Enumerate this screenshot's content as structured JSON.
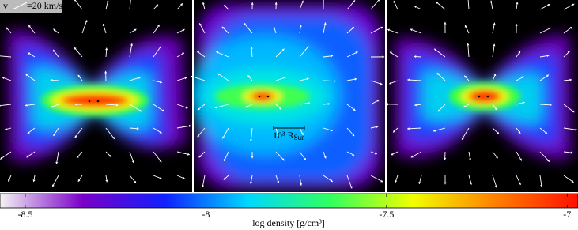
{
  "chart_data": {
    "type": "heatmap",
    "velocity_key": {
      "symbol": "v",
      "label": "=20 km/s"
    },
    "scale_bar": {
      "label": "10³ R",
      "subscript": "Sun"
    },
    "colorbar": {
      "label": "log density [g/cm³]",
      "clim": [
        -8.57,
        -6.97
      ],
      "ticks": [
        -8.5,
        -8,
        -7.5,
        -7
      ],
      "colormap": [
        "#f4f4f4",
        "#7a00c8",
        "#1020ff",
        "#00d8ff",
        "#30ff60",
        "#f0ff00",
        "#ff8000",
        "#ff1000"
      ]
    }
  }
}
